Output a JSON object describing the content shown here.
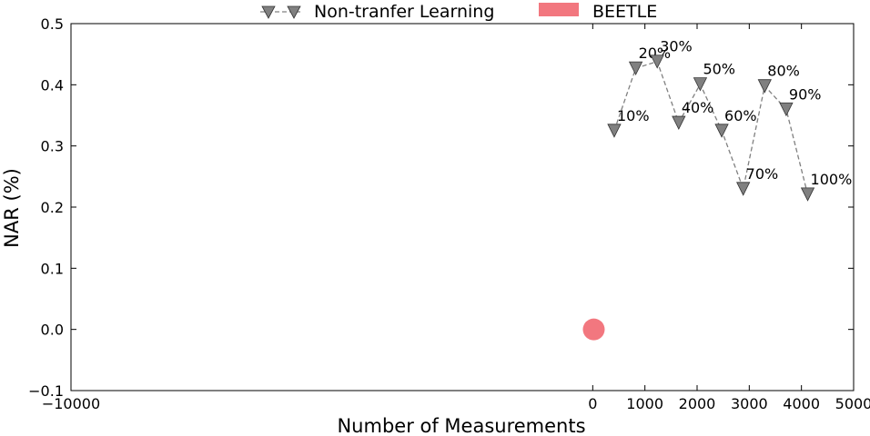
{
  "chart_data": {
    "type": "scatter",
    "xlabel": "Number of Measurements",
    "ylabel": "NAR (%)",
    "xlim": [
      -10000,
      5000
    ],
    "ylim": [
      -0.1,
      0.5
    ],
    "xticks": [
      -10000,
      0,
      1000,
      2000,
      3000,
      4000,
      5000
    ],
    "xtick_labels": [
      "−10000",
      "0",
      "1000",
      "2000",
      "3000",
      "4000",
      "5000"
    ],
    "yticks": [
      -0.1,
      0.0,
      0.1,
      0.2,
      0.3,
      0.4,
      0.5
    ],
    "ytick_labels": [
      "−0.1",
      "0.0",
      "0.1",
      "0.2",
      "0.3",
      "0.4",
      "0.5"
    ],
    "grid": false,
    "legend_position": "top-center",
    "series": [
      {
        "name": "Non-tranfer Learning",
        "marker": "triangle-down",
        "line": "dashed",
        "color": "#808080",
        "x": [
          412,
          824,
          1236,
          1648,
          2060,
          2472,
          2884,
          3296,
          3708,
          4120
        ],
        "y": [
          0.325,
          0.427,
          0.438,
          0.338,
          0.401,
          0.325,
          0.23,
          0.398,
          0.36,
          0.221
        ],
        "labels": [
          "10%",
          "20%",
          "30%",
          "40%",
          "50%",
          "60%",
          "70%",
          "80%",
          "90%",
          "100%"
        ]
      },
      {
        "name": "BEETLE",
        "marker": "circle",
        "color": "#f2777f",
        "x": [
          20
        ],
        "y": [
          0.0
        ]
      }
    ]
  }
}
